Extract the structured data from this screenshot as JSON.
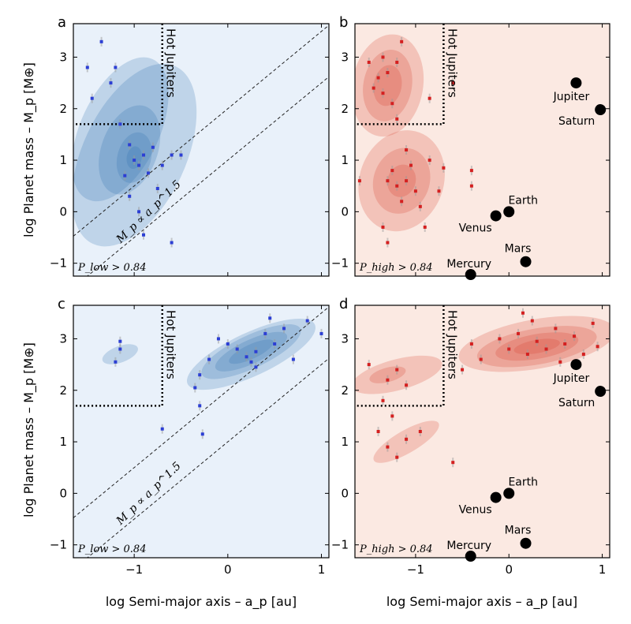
{
  "figure": {
    "xlabel": "log Semi-major axis – a_p [au]",
    "ylabel": "log Planet mass – M_p [M⊕]",
    "hot_jupiters_label": "Hot Jupiters",
    "scaling_law_label": "M_p ∝ a_p^1.5"
  },
  "chart_data": [
    {
      "panel": "a",
      "type": "scatter",
      "theme": "blue",
      "bg_color": "#e9f1fa",
      "kde_color": "#2b6cae",
      "point_color": "#2c3fd4",
      "condition": "P_low > 0.84",
      "xlim": [
        -1.65,
        1.08
      ],
      "ylim": [
        -1.25,
        3.65
      ],
      "xticks": [
        -1,
        0,
        1
      ],
      "yticks": [
        -1,
        0,
        1,
        2,
        3
      ],
      "hot_jupiter_box": {
        "x_max": -0.7,
        "y_min": 1.7
      },
      "scaling_lines": [
        {
          "y_at_x0": 2.0
        },
        {
          "y_at_x0": 1.0
        }
      ],
      "kde": [
        {
          "cx": -1.0,
          "cy": 1.1,
          "rx": 0.55,
          "ry": 1.9,
          "rot": 25
        },
        {
          "cx": -1.15,
          "cy": 1.6,
          "rx": 0.42,
          "ry": 1.5,
          "rot": 25
        },
        {
          "cx": -1.05,
          "cy": 1.2,
          "rx": 0.3,
          "ry": 0.9,
          "rot": 20
        },
        {
          "cx": -1.0,
          "cy": 1.05,
          "rx": 0.18,
          "ry": 0.5,
          "rot": 15
        },
        {
          "cx": -1.0,
          "cy": 1.05,
          "rx": 0.08,
          "ry": 0.22,
          "rot": 10
        }
      ],
      "points": [
        {
          "x": -1.5,
          "y": 2.8
        },
        {
          "x": -1.35,
          "y": 3.3
        },
        {
          "x": -1.45,
          "y": 2.2
        },
        {
          "x": -1.25,
          "y": 2.5
        },
        {
          "x": -1.2,
          "y": 2.8
        },
        {
          "x": -1.15,
          "y": 1.7
        },
        {
          "x": -1.05,
          "y": 1.3
        },
        {
          "x": -1.0,
          "y": 1.0
        },
        {
          "x": -0.95,
          "y": 0.9
        },
        {
          "x": -0.9,
          "y": 1.1
        },
        {
          "x": -0.85,
          "y": 0.75
        },
        {
          "x": -0.8,
          "y": 1.25
        },
        {
          "x": -1.1,
          "y": 0.7
        },
        {
          "x": -0.75,
          "y": 0.45
        },
        {
          "x": -0.95,
          "y": 0.0
        },
        {
          "x": -0.9,
          "y": -0.45
        },
        {
          "x": -0.6,
          "y": -0.6
        },
        {
          "x": -0.6,
          "y": 1.1
        },
        {
          "x": -0.5,
          "y": 1.1
        },
        {
          "x": -0.7,
          "y": 0.9
        },
        {
          "x": -1.05,
          "y": 0.3
        }
      ],
      "planets": []
    },
    {
      "panel": "b",
      "type": "scatter",
      "theme": "red",
      "bg_color": "#fbe9e2",
      "kde_color": "#d8392a",
      "point_color": "#d42020",
      "condition": "P_high > 0.84",
      "xlim": [
        -1.65,
        1.08
      ],
      "ylim": [
        -1.25,
        3.65
      ],
      "xticks": [
        -1,
        0,
        1
      ],
      "yticks": [
        -1,
        0,
        1,
        2,
        3
      ],
      "hot_jupiter_box": {
        "x_max": -0.7,
        "y_min": 1.7
      },
      "scaling_lines": [],
      "kde": [
        {
          "cx": -1.3,
          "cy": 2.45,
          "rx": 0.38,
          "ry": 1.0,
          "rot": 10
        },
        {
          "cx": -1.3,
          "cy": 2.45,
          "rx": 0.26,
          "ry": 0.7,
          "rot": 10
        },
        {
          "cx": -1.3,
          "cy": 2.45,
          "rx": 0.15,
          "ry": 0.4,
          "rot": 10
        },
        {
          "cx": -1.15,
          "cy": 0.6,
          "rx": 0.45,
          "ry": 1.0,
          "rot": 20
        },
        {
          "cx": -1.15,
          "cy": 0.6,
          "rx": 0.3,
          "ry": 0.65,
          "rot": 20
        },
        {
          "cx": -1.15,
          "cy": 0.6,
          "rx": 0.15,
          "ry": 0.32,
          "rot": 20
        }
      ],
      "points": [
        {
          "x": -1.5,
          "y": 2.9
        },
        {
          "x": -1.4,
          "y": 2.6
        },
        {
          "x": -1.35,
          "y": 2.3
        },
        {
          "x": -1.3,
          "y": 2.7
        },
        {
          "x": -1.25,
          "y": 2.1
        },
        {
          "x": -1.2,
          "y": 2.9
        },
        {
          "x": -1.45,
          "y": 2.4
        },
        {
          "x": -1.15,
          "y": 3.3
        },
        {
          "x": -1.35,
          "y": 3.0
        },
        {
          "x": -1.2,
          "y": 1.8
        },
        {
          "x": -0.85,
          "y": 2.2
        },
        {
          "x": -0.6,
          "y": 2.5
        },
        {
          "x": -1.25,
          "y": 0.8
        },
        {
          "x": -1.2,
          "y": 0.5
        },
        {
          "x": -1.1,
          "y": 0.6
        },
        {
          "x": -1.0,
          "y": 0.4
        },
        {
          "x": -1.15,
          "y": 0.2
        },
        {
          "x": -1.3,
          "y": 0.6
        },
        {
          "x": -1.05,
          "y": 0.9
        },
        {
          "x": -0.95,
          "y": 0.1
        },
        {
          "x": -1.35,
          "y": -0.3
        },
        {
          "x": -0.85,
          "y": 1.0
        },
        {
          "x": -0.7,
          "y": 0.85
        },
        {
          "x": -0.4,
          "y": 0.5
        },
        {
          "x": -0.4,
          "y": 0.8
        },
        {
          "x": -1.6,
          "y": 0.6
        },
        {
          "x": -1.3,
          "y": -0.6
        },
        {
          "x": -1.1,
          "y": 1.2
        },
        {
          "x": -0.75,
          "y": 0.4
        },
        {
          "x": -0.9,
          "y": -0.3
        }
      ],
      "planets": [
        {
          "name": "Jupiter",
          "x": 0.72,
          "y": 2.5,
          "label_pos": "below-left"
        },
        {
          "name": "Saturn",
          "x": 0.98,
          "y": 1.98,
          "label_pos": "below-left"
        },
        {
          "name": "Earth",
          "x": 0.0,
          "y": 0.0,
          "label_pos": "above-right"
        },
        {
          "name": "Venus",
          "x": -0.14,
          "y": -0.08,
          "label_pos": "below-left"
        },
        {
          "name": "Mars",
          "x": 0.18,
          "y": -0.97,
          "label_pos": "above-left"
        },
        {
          "name": "Mercury",
          "x": -0.41,
          "y": -1.22,
          "label_pos": "above-left"
        }
      ]
    },
    {
      "panel": "c",
      "type": "scatter",
      "theme": "blue",
      "bg_color": "#e9f1fa",
      "kde_color": "#2b6cae",
      "point_color": "#2c3fd4",
      "condition": "P_low > 0.84",
      "xlim": [
        -1.65,
        1.08
      ],
      "ylim": [
        -1.25,
        3.65
      ],
      "xticks": [
        -1,
        0,
        1
      ],
      "yticks": [
        -1,
        0,
        1,
        2,
        3
      ],
      "hot_jupiter_box": {
        "x_max": -0.7,
        "y_min": 1.7
      },
      "scaling_lines": [
        {
          "y_at_x0": 2.0
        },
        {
          "y_at_x0": 1.0
        }
      ],
      "kde": [
        {
          "cx": 0.25,
          "cy": 2.7,
          "rx": 0.75,
          "ry": 0.42,
          "rot": -25
        },
        {
          "cx": 0.25,
          "cy": 2.75,
          "rx": 0.58,
          "ry": 0.32,
          "rot": -25
        },
        {
          "cx": 0.25,
          "cy": 2.75,
          "rx": 0.42,
          "ry": 0.23,
          "rot": -25
        },
        {
          "cx": 0.25,
          "cy": 2.75,
          "rx": 0.26,
          "ry": 0.14,
          "rot": -25
        },
        {
          "cx": -1.15,
          "cy": 2.7,
          "rx": 0.2,
          "ry": 0.16,
          "rot": -20
        }
      ],
      "points": [
        {
          "x": -1.15,
          "y": 2.95
        },
        {
          "x": -1.15,
          "y": 2.8
        },
        {
          "x": -1.2,
          "y": 2.55
        },
        {
          "x": 0.0,
          "y": 2.9
        },
        {
          "x": 0.1,
          "y": 2.8
        },
        {
          "x": 0.2,
          "y": 2.65
        },
        {
          "x": 0.3,
          "y": 2.75
        },
        {
          "x": 0.4,
          "y": 3.1
        },
        {
          "x": 0.5,
          "y": 2.9
        },
        {
          "x": 0.6,
          "y": 3.2
        },
        {
          "x": 0.45,
          "y": 3.4
        },
        {
          "x": 1.0,
          "y": 3.1
        },
        {
          "x": 0.7,
          "y": 2.6
        },
        {
          "x": 0.3,
          "y": 2.45
        },
        {
          "x": -0.2,
          "y": 2.6
        },
        {
          "x": -0.3,
          "y": 2.3
        },
        {
          "x": -0.35,
          "y": 2.05
        },
        {
          "x": -0.3,
          "y": 1.7
        },
        {
          "x": -0.27,
          "y": 1.15
        },
        {
          "x": -0.7,
          "y": 1.25
        },
        {
          "x": 0.25,
          "y": 2.55
        },
        {
          "x": 0.85,
          "y": 3.35
        },
        {
          "x": -0.1,
          "y": 3.0
        }
      ],
      "planets": []
    },
    {
      "panel": "d",
      "type": "scatter",
      "theme": "red",
      "bg_color": "#fbe9e2",
      "kde_color": "#d8392a",
      "point_color": "#d42020",
      "condition": "P_high > 0.84",
      "xlim": [
        -1.65,
        1.08
      ],
      "ylim": [
        -1.25,
        3.65
      ],
      "xticks": [
        -1,
        0,
        1
      ],
      "yticks": [
        -1,
        0,
        1,
        2,
        3
      ],
      "hot_jupiter_box": {
        "x_max": -0.7,
        "y_min": 1.7
      },
      "scaling_lines": [],
      "kde": [
        {
          "cx": 0.3,
          "cy": 2.9,
          "rx": 0.85,
          "ry": 0.48,
          "rot": -10
        },
        {
          "cx": 0.3,
          "cy": 2.85,
          "rx": 0.65,
          "ry": 0.35,
          "rot": -10
        },
        {
          "cx": 0.3,
          "cy": 2.85,
          "rx": 0.45,
          "ry": 0.24,
          "rot": -10
        },
        {
          "cx": 0.3,
          "cy": 2.85,
          "rx": 0.25,
          "ry": 0.13,
          "rot": -10
        },
        {
          "cx": -1.2,
          "cy": 2.3,
          "rx": 0.5,
          "ry": 0.3,
          "rot": -15
        },
        {
          "cx": -1.3,
          "cy": 2.3,
          "rx": 0.2,
          "ry": 0.14,
          "rot": -15
        },
        {
          "cx": -1.1,
          "cy": 1.0,
          "rx": 0.4,
          "ry": 0.22,
          "rot": -30
        }
      ],
      "points": [
        {
          "x": -0.1,
          "y": 3.0
        },
        {
          "x": 0.0,
          "y": 2.8
        },
        {
          "x": 0.1,
          "y": 3.1
        },
        {
          "x": 0.2,
          "y": 2.7
        },
        {
          "x": 0.3,
          "y": 2.95
        },
        {
          "x": 0.4,
          "y": 2.8
        },
        {
          "x": 0.5,
          "y": 3.2
        },
        {
          "x": 0.6,
          "y": 2.9
        },
        {
          "x": 0.7,
          "y": 3.05
        },
        {
          "x": 0.8,
          "y": 2.7
        },
        {
          "x": 0.9,
          "y": 3.3
        },
        {
          "x": -0.3,
          "y": 2.6
        },
        {
          "x": -0.4,
          "y": 2.9
        },
        {
          "x": -0.5,
          "y": 2.4
        },
        {
          "x": 0.25,
          "y": 3.35
        },
        {
          "x": 0.55,
          "y": 2.55
        },
        {
          "x": -1.5,
          "y": 2.5
        },
        {
          "x": -1.3,
          "y": 2.2
        },
        {
          "x": -1.2,
          "y": 2.4
        },
        {
          "x": -1.35,
          "y": 1.8
        },
        {
          "x": -1.1,
          "y": 2.1
        },
        {
          "x": -1.25,
          "y": 1.5
        },
        {
          "x": -1.4,
          "y": 1.2
        },
        {
          "x": -1.3,
          "y": 0.9
        },
        {
          "x": -1.1,
          "y": 1.05
        },
        {
          "x": -0.95,
          "y": 1.2
        },
        {
          "x": -0.6,
          "y": 0.6
        },
        {
          "x": -1.2,
          "y": 0.7
        },
        {
          "x": 0.15,
          "y": 3.5
        },
        {
          "x": 0.95,
          "y": 2.85
        }
      ],
      "planets": [
        {
          "name": "Jupiter",
          "x": 0.72,
          "y": 2.5,
          "label_pos": "below-left"
        },
        {
          "name": "Saturn",
          "x": 0.98,
          "y": 1.98,
          "label_pos": "below-left"
        },
        {
          "name": "Earth",
          "x": 0.0,
          "y": 0.0,
          "label_pos": "above-right"
        },
        {
          "name": "Venus",
          "x": -0.14,
          "y": -0.08,
          "label_pos": "below-left"
        },
        {
          "name": "Mars",
          "x": 0.18,
          "y": -0.97,
          "label_pos": "above-left"
        },
        {
          "name": "Mercury",
          "x": -0.41,
          "y": -1.22,
          "label_pos": "above-left"
        }
      ]
    }
  ]
}
